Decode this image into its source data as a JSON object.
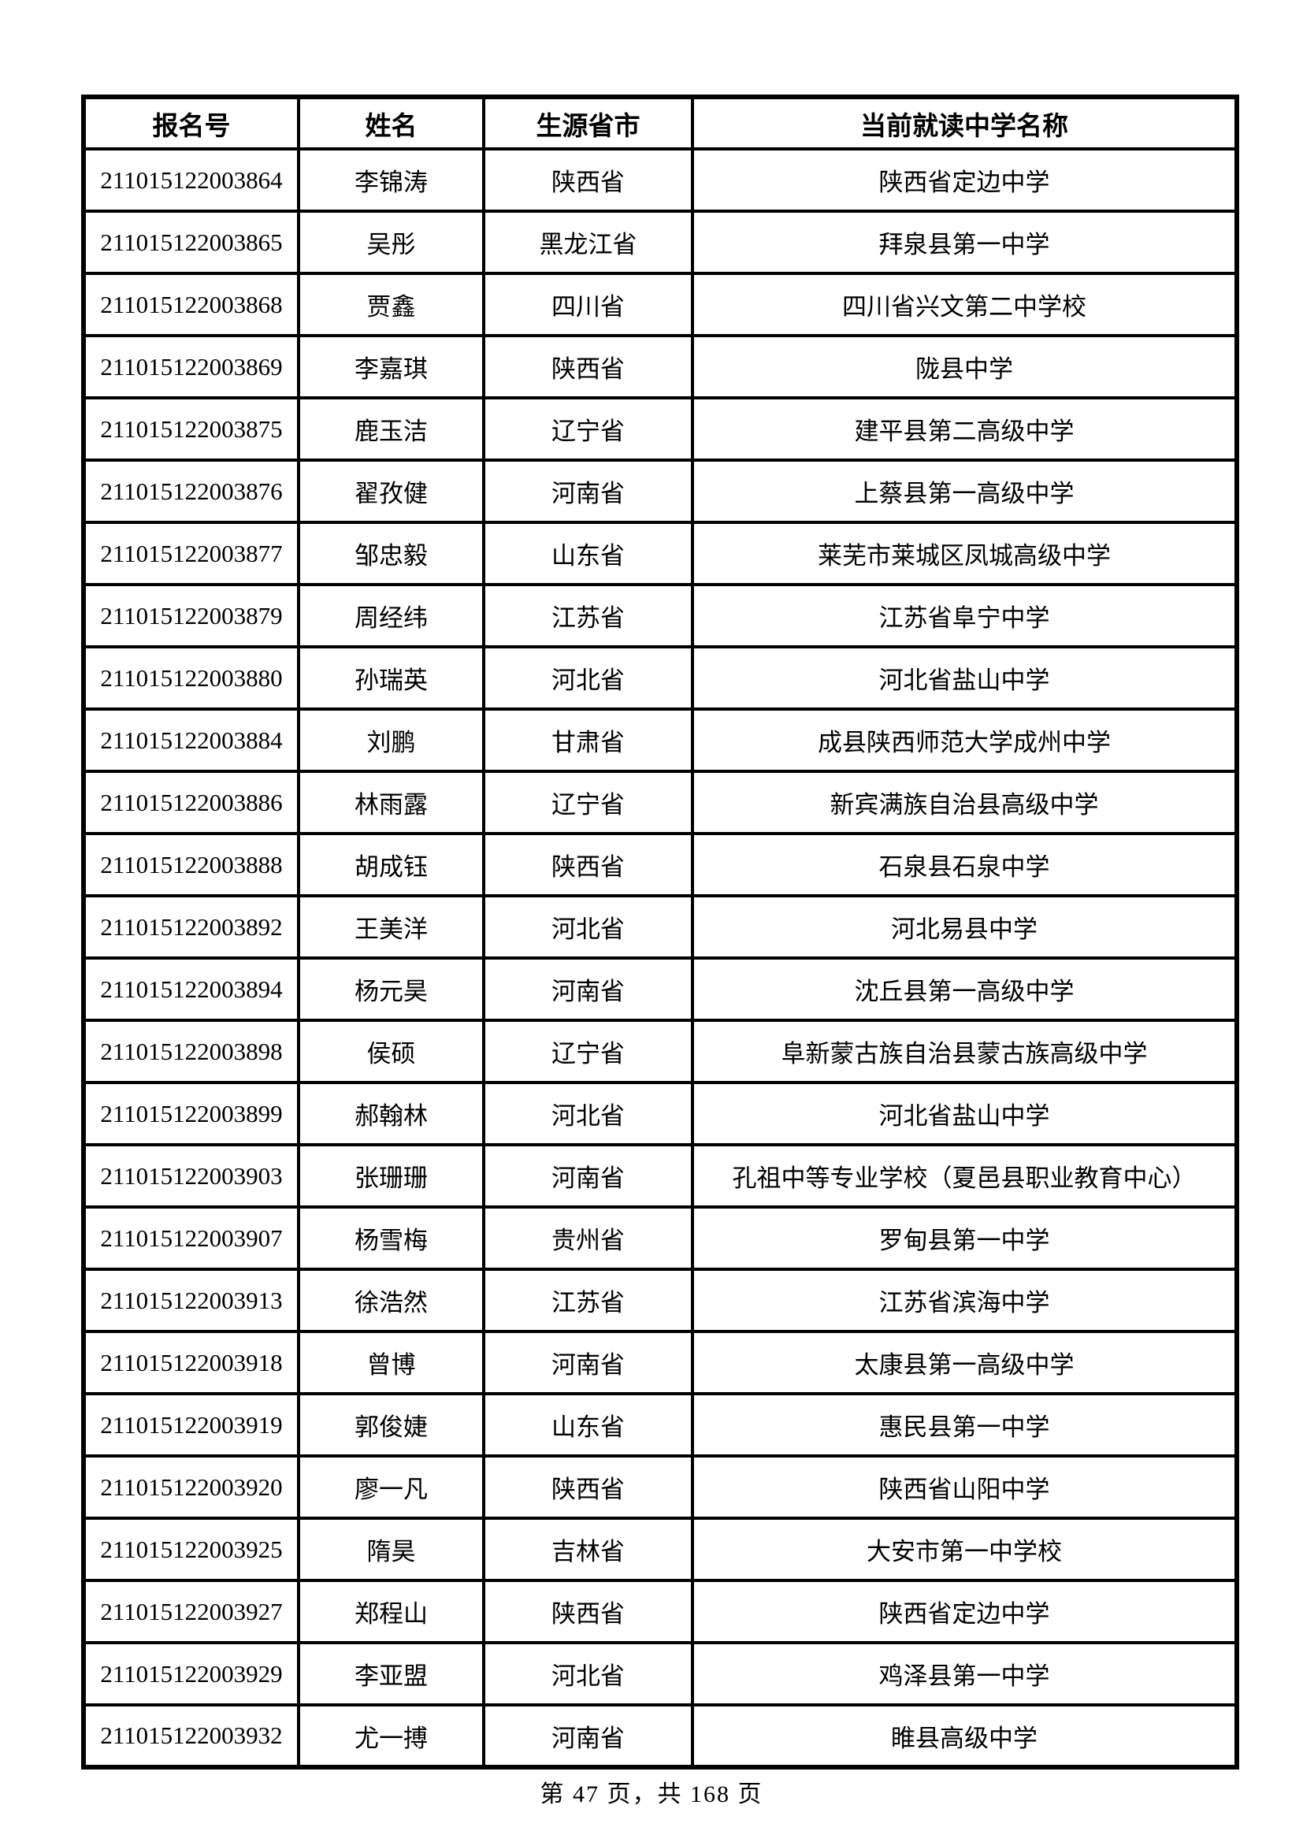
{
  "table": {
    "columns": [
      "报名号",
      "姓名",
      "生源省市",
      "当前就读中学名称"
    ],
    "rows": [
      {
        "id": "211015122003864",
        "name": "李锦涛",
        "province": "陕西省",
        "school": "陕西省定边中学"
      },
      {
        "id": "211015122003865",
        "name": "吴彤",
        "province": "黑龙江省",
        "school": "拜泉县第一中学"
      },
      {
        "id": "211015122003868",
        "name": "贾鑫",
        "province": "四川省",
        "school": "四川省兴文第二中学校"
      },
      {
        "id": "211015122003869",
        "name": "李嘉琪",
        "province": "陕西省",
        "school": "陇县中学"
      },
      {
        "id": "211015122003875",
        "name": "鹿玉洁",
        "province": "辽宁省",
        "school": "建平县第二高级中学"
      },
      {
        "id": "211015122003876",
        "name": "翟孜健",
        "province": "河南省",
        "school": "上蔡县第一高级中学"
      },
      {
        "id": "211015122003877",
        "name": "邹忠毅",
        "province": "山东省",
        "school": "莱芜市莱城区凤城高级中学"
      },
      {
        "id": "211015122003879",
        "name": "周经纬",
        "province": "江苏省",
        "school": "江苏省阜宁中学"
      },
      {
        "id": "211015122003880",
        "name": "孙瑞英",
        "province": "河北省",
        "school": "河北省盐山中学"
      },
      {
        "id": "211015122003884",
        "name": "刘鹏",
        "province": "甘肃省",
        "school": "成县陕西师范大学成州中学"
      },
      {
        "id": "211015122003886",
        "name": "林雨露",
        "province": "辽宁省",
        "school": "新宾满族自治县高级中学"
      },
      {
        "id": "211015122003888",
        "name": "胡成钰",
        "province": "陕西省",
        "school": "石泉县石泉中学"
      },
      {
        "id": "211015122003892",
        "name": "王美洋",
        "province": "河北省",
        "school": "河北易县中学"
      },
      {
        "id": "211015122003894",
        "name": "杨元昊",
        "province": "河南省",
        "school": "沈丘县第一高级中学"
      },
      {
        "id": "211015122003898",
        "name": "侯硕",
        "province": "辽宁省",
        "school": "阜新蒙古族自治县蒙古族高级中学"
      },
      {
        "id": "211015122003899",
        "name": "郝翰林",
        "province": "河北省",
        "school": "河北省盐山中学"
      },
      {
        "id": "211015122003903",
        "name": "张珊珊",
        "province": "河南省",
        "school": "孔祖中等专业学校（夏邑县职业教育中心）"
      },
      {
        "id": "211015122003907",
        "name": "杨雪梅",
        "province": "贵州省",
        "school": "罗甸县第一中学"
      },
      {
        "id": "211015122003913",
        "name": "徐浩然",
        "province": "江苏省",
        "school": "江苏省滨海中学"
      },
      {
        "id": "211015122003918",
        "name": "曾博",
        "province": "河南省",
        "school": "太康县第一高级中学"
      },
      {
        "id": "211015122003919",
        "name": "郭俊婕",
        "province": "山东省",
        "school": "惠民县第一中学"
      },
      {
        "id": "211015122003920",
        "name": "廖一凡",
        "province": "陕西省",
        "school": "陕西省山阳中学"
      },
      {
        "id": "211015122003925",
        "name": "隋昊",
        "province": "吉林省",
        "school": "大安市第一中学校"
      },
      {
        "id": "211015122003927",
        "name": "郑程山",
        "province": "陕西省",
        "school": "陕西省定边中学"
      },
      {
        "id": "211015122003929",
        "name": "李亚盟",
        "province": "河北省",
        "school": "鸡泽县第一中学"
      },
      {
        "id": "211015122003932",
        "name": "尤一搏",
        "province": "河南省",
        "school": "睢县高级中学"
      }
    ]
  },
  "footer": {
    "text": "第 47 页，共 168 页"
  }
}
